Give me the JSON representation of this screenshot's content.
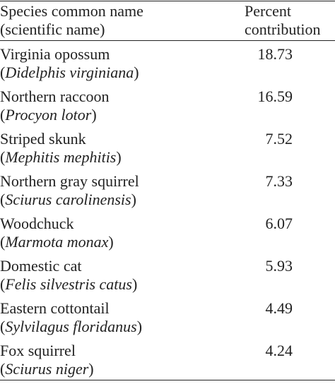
{
  "header": {
    "species_line1": "Species common name",
    "species_line2": "(scientific name)",
    "percent_line1": "Percent",
    "percent_line2": "contribution"
  },
  "rows": [
    {
      "common": "Virginia opossum",
      "scientific": "Didelphis virginiana",
      "percent": "18.73"
    },
    {
      "common": "Northern raccoon",
      "scientific": "Procyon lotor",
      "percent": "16.59"
    },
    {
      "common": "Striped skunk",
      "scientific": "Mephitis mephitis",
      "percent": "7.52"
    },
    {
      "common": "Northern gray squirrel",
      "scientific": "Sciurus carolinensis",
      "percent": "7.33"
    },
    {
      "common": "Woodchuck",
      "scientific": "Marmota monax",
      "percent": "6.07"
    },
    {
      "common": "Domestic cat",
      "scientific": "Felis silvestris catus",
      "percent": "5.93"
    },
    {
      "common": "Eastern cottontail",
      "scientific": "Sylvilagus floridanus",
      "percent": "4.49"
    },
    {
      "common": "Fox squirrel",
      "scientific": "Sciurus niger",
      "percent": "4.24"
    }
  ]
}
